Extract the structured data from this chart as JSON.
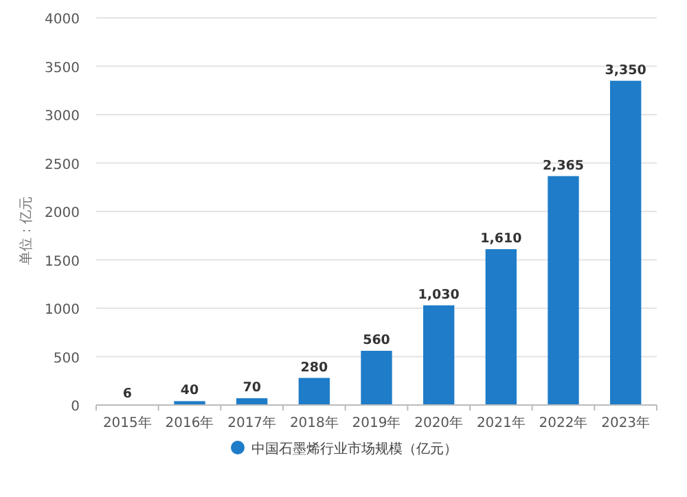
{
  "chart_data": {
    "type": "bar",
    "ylabel": "单位：亿元",
    "categories": [
      "2015年",
      "2016年",
      "2017年",
      "2018年",
      "2019年",
      "2020年",
      "2021年",
      "2022年",
      "2023年"
    ],
    "series": [
      {
        "name": "中国石墨烯行业市场规模（亿元）",
        "color": "#1e7cc8",
        "values": [
          6,
          40,
          70,
          280,
          560,
          1030,
          1610,
          2365,
          3350
        ]
      }
    ],
    "value_labels": [
      "6",
      "40",
      "70",
      "280",
      "560",
      "1,030",
      "1,610",
      "2,365",
      "3,350"
    ],
    "ylim": [
      0,
      4000
    ],
    "yticks": [
      0,
      500,
      1000,
      1500,
      2000,
      2500,
      3000,
      3500,
      4000
    ],
    "grid": "y",
    "legend": "bottom"
  }
}
